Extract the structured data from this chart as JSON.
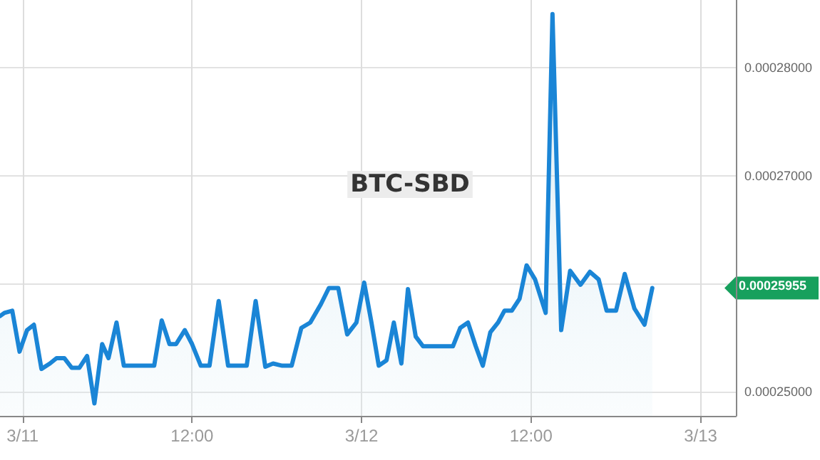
{
  "chart_data": {
    "type": "area",
    "title": "BTC-SBD",
    "x": [
      "--03-10T22:24",
      "--03-10T22:43",
      "--03-10T23:16",
      "--03-10T23:47",
      "--03-11T00:19",
      "--03-11T00:48",
      "--03-11T01:20",
      "--03-11T01:56",
      "--03-11T02:24",
      "--03-11T02:57",
      "--03-11T03:29",
      "--03-11T04:01",
      "--03-11T04:34",
      "--03-11T05:05",
      "--03-11T05:38",
      "--03-11T06:05",
      "--03-11T06:39",
      "--03-11T07:10",
      "--03-11T09:19",
      "--03-11T09:51",
      "--03-11T10:24",
      "--03-11T10:52",
      "--03-11T11:29",
      "--03-11T12:00",
      "--03-11T12:37",
      "--03-11T13:14",
      "--03-11T13:53",
      "--03-11T14:33",
      "--03-11T15:52",
      "--03-11T16:30",
      "--03-11T17:11",
      "--03-11T17:44",
      "--03-11T18:23",
      "--03-11T19:03",
      "--03-11T19:44",
      "--03-11T20:22",
      "--03-11T21:07",
      "--03-11T21:41",
      "--03-11T22:21",
      "--03-11T22:59",
      "--03-11T23:38",
      "--03-12T00:11",
      "--03-12T00:42",
      "--03-12T01:13",
      "--03-12T01:46",
      "--03-12T02:17",
      "--03-12T02:49",
      "--03-12T03:17",
      "--03-12T03:50",
      "--03-12T04:21",
      "--03-12T06:28",
      "--03-12T06:59",
      "--03-12T07:32",
      "--03-12T08:05",
      "--03-12T08:35",
      "--03-12T09:07",
      "--03-12T09:40",
      "--03-12T10:07",
      "--03-12T10:38",
      "--03-12T11:11",
      "--03-12T11:41",
      "--03-12T12:17",
      "--03-12T13:02",
      "--03-12T13:31",
      "--03-12T14:08",
      "--03-12T14:46",
      "--03-12T15:30",
      "--03-12T16:10",
      "--03-12T16:47",
      "--03-12T17:21",
      "--03-12T18:01",
      "--03-12T18:38",
      "--03-12T19:19",
      "--03-12T20:02",
      "--03-12T20:35"
    ],
    "series": [
      {
        "color": "#1a85d6",
        "values": [
          0.000257,
          0.0002573,
          0.0002575,
          0.0002537,
          0.0002557,
          0.0002562,
          0.0002521,
          0.0002526,
          0.0002531,
          0.0002531,
          0.0002522,
          0.0002522,
          0.0002533,
          0.0002489,
          0.0002544,
          0.0002531,
          0.0002564,
          0.0002524,
          0.0002524,
          0.0002566,
          0.0002544,
          0.0002544,
          0.0002557,
          0.0002544,
          0.0002524,
          0.0002524,
          0.0002584,
          0.0002524,
          0.0002524,
          0.0002584,
          0.0002523,
          0.0002526,
          0.0002524,
          0.0002524,
          0.0002559,
          0.0002564,
          0.0002581,
          0.0002596,
          0.0002596,
          0.0002553,
          0.0002564,
          0.0002601,
          0.0002564,
          0.0002524,
          0.0002529,
          0.0002564,
          0.0002526,
          0.0002595,
          0.0002551,
          0.0002542,
          0.0002542,
          0.0002559,
          0.0002564,
          0.0002542,
          0.0002524,
          0.0002555,
          0.0002564,
          0.0002575,
          0.0002575,
          0.0002586,
          0.0002617,
          0.0002604,
          0.0002573,
          0.000285,
          0.0002557,
          0.0002612,
          0.0002599,
          0.0002611,
          0.0002604,
          0.0002575,
          0.0002575,
          0.0002609,
          0.0002577,
          0.0002562,
          0.0002596
        ]
      }
    ],
    "xlim": [
      "--03-10T22:24",
      "--03-13T02:30"
    ],
    "xticks": [
      {
        "value": "--03-11T00:00",
        "label": "3/11"
      },
      {
        "value": "--03-11T12:00",
        "label": "12:00"
      },
      {
        "value": "--03-12T00:00",
        "label": "3/12"
      },
      {
        "value": "--03-12T12:00",
        "label": "12:00"
      },
      {
        "value": "--03-13T00:00",
        "label": "3/13"
      }
    ],
    "ylim": [
      0.00024775,
      0.0002863
    ],
    "yticks": [
      {
        "value": 0.00025,
        "label": "0.00025000"
      },
      {
        "value": 0.00026,
        "label": null
      },
      {
        "value": 0.00027,
        "label": "0.00027000"
      },
      {
        "value": 0.00028,
        "label": "0.00028000"
      }
    ],
    "annotations": [
      "0.00025955"
    ],
    "grid": true,
    "marker": "none",
    "line_style": "solid"
  }
}
